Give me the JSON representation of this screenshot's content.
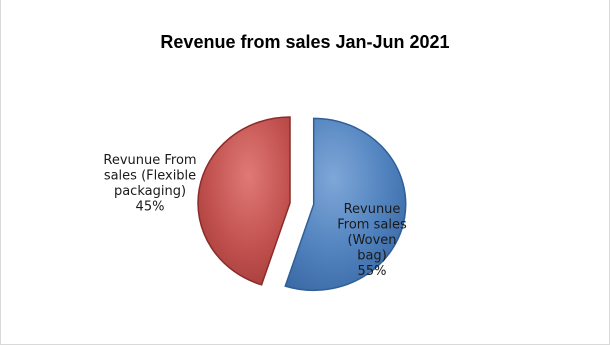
{
  "chart_data": {
    "type": "pie",
    "title": "Revenue from sales Jan-Jun 2021",
    "slices": [
      {
        "label_lines": [
          "Revunue",
          "From sales",
          "(Woven",
          "bag)",
          "55%"
        ],
        "value": 55,
        "color": "#4f81bd",
        "color_dark": "#2f5f98",
        "exploded": true
      },
      {
        "label_lines": [
          "Revunue From",
          "sales (Flexible",
          "packaging)",
          "45%"
        ],
        "value": 45,
        "color": "#c0504d",
        "color_dark": "#8c2b2a",
        "exploded": false
      }
    ],
    "legend": "none",
    "grid": false
  }
}
